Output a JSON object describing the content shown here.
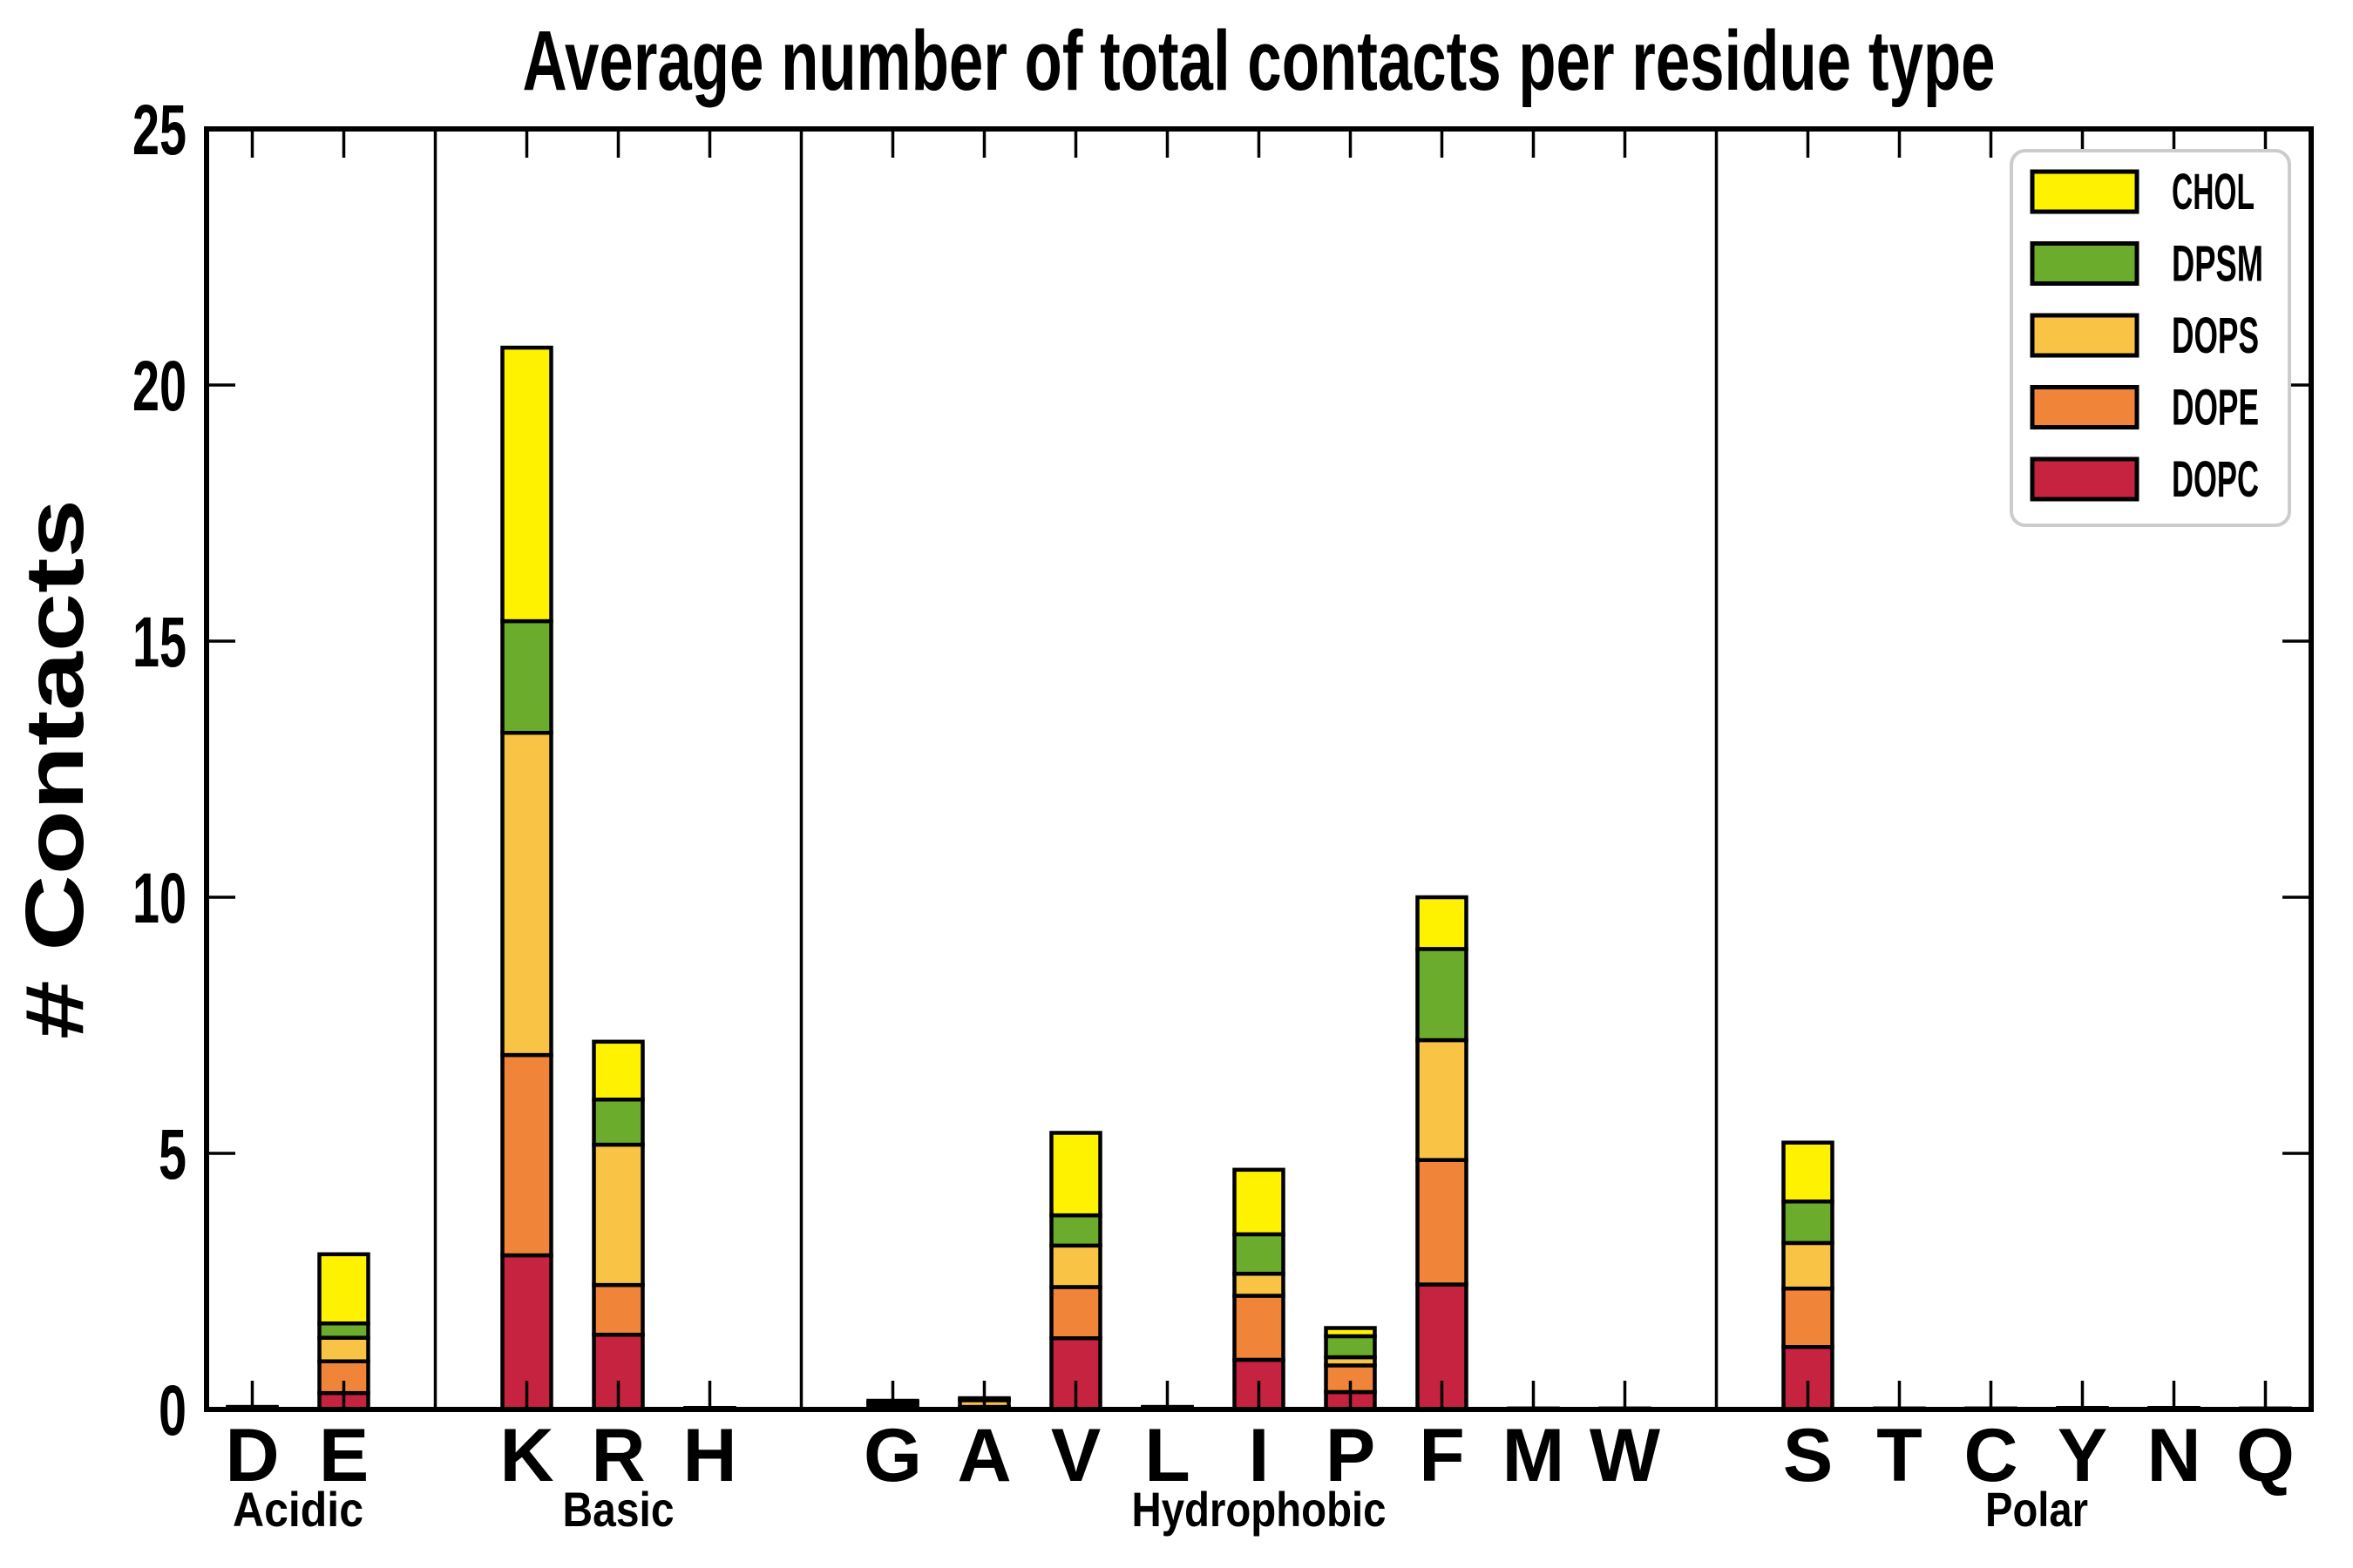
{
  "chart_data": {
    "type": "bar",
    "stacked": true,
    "title": "Average number of total contacts per residue type",
    "ylabel": "# Contacts",
    "xlabel": "",
    "ylim": [
      0,
      25
    ],
    "yticks": [
      "0",
      "5",
      "10",
      "15",
      "20",
      "25"
    ],
    "grid": false,
    "legend_position": "upper right",
    "series_bottom_to_top": [
      "DOPC",
      "DOPE",
      "DOPS",
      "DPSM",
      "CHOL"
    ],
    "colors": {
      "CHOL": "#FFF200",
      "DPSM": "#6CAC2C",
      "DOPS": "#F9C345",
      "DOPE": "#F08539",
      "DOPC": "#C62340",
      "bar_edge": "#000000",
      "legend_border": "#cccccc"
    },
    "legend": [
      {
        "label": "CHOL",
        "color": "#FFF200"
      },
      {
        "label": "DPSM",
        "color": "#6CAC2C"
      },
      {
        "label": "DOPS",
        "color": "#F9C345"
      },
      {
        "label": "DOPE",
        "color": "#F08539"
      },
      {
        "label": "DOPC",
        "color": "#C62340"
      }
    ],
    "groups": [
      {
        "label": "Acidic",
        "residues": [
          {
            "label": "D",
            "values": [
              0.01,
              0.01,
              0.01,
              0.01,
              0.01
            ],
            "total": 0.05
          },
          {
            "label": "E",
            "values": [
              0.32,
              0.62,
              0.46,
              0.28,
              1.35
            ],
            "total": 3.03
          }
        ]
      },
      {
        "label": "Basic",
        "residues": [
          {
            "label": "K",
            "values": [
              3.01,
              3.91,
              6.29,
              2.18,
              5.34
            ],
            "total": 20.73
          },
          {
            "label": "R",
            "values": [
              1.46,
              0.97,
              2.74,
              0.88,
              1.13
            ],
            "total": 7.18
          },
          {
            "label": "H",
            "values": [
              0.01,
              0.01,
              0.01,
              0,
              0
            ],
            "total": 0.03
          }
        ]
      },
      {
        "label": "Hydrophobic",
        "residues": [
          {
            "label": "G",
            "values": [
              0.03,
              0.05,
              0.05,
              0.02,
              0.02
            ],
            "total": 0.17
          },
          {
            "label": "A",
            "values": [
              0.02,
              0.03,
              0.13,
              0.02,
              0.02
            ],
            "total": 0.22
          },
          {
            "label": "V",
            "values": [
              1.39,
              1.0,
              0.81,
              0.59,
              1.61
            ],
            "total": 5.4
          },
          {
            "label": "L",
            "values": [
              0.01,
              0.01,
              0.01,
              0.01,
              0.01
            ],
            "total": 0.05
          },
          {
            "label": "I",
            "values": [
              0.97,
              1.25,
              0.43,
              0.77,
              1.26
            ],
            "total": 4.68
          },
          {
            "label": "P",
            "values": [
              0.34,
              0.52,
              0.16,
              0.41,
              0.16
            ],
            "total": 1.59
          },
          {
            "label": "F",
            "values": [
              2.44,
              2.43,
              2.34,
              1.78,
              1.01
            ],
            "total": 10.0
          },
          {
            "label": "M",
            "values": [
              0.01,
              0.005,
              0.005,
              0,
              0
            ],
            "total": 0.02
          },
          {
            "label": "W",
            "values": [
              0.01,
              0.005,
              0.005,
              0,
              0
            ],
            "total": 0.02
          }
        ]
      },
      {
        "label": "Polar",
        "residues": [
          {
            "label": "S",
            "values": [
              1.22,
              1.14,
              0.89,
              0.81,
              1.15
            ],
            "total": 5.21
          },
          {
            "label": "T",
            "values": [
              0.01,
              0.005,
              0.005,
              0,
              0
            ],
            "total": 0.02
          },
          {
            "label": "C",
            "values": [
              0.01,
              0.005,
              0.005,
              0,
              0
            ],
            "total": 0.02
          },
          {
            "label": "Y",
            "values": [
              0.01,
              0.01,
              0.01,
              0,
              0
            ],
            "total": 0.03
          },
          {
            "label": "N",
            "values": [
              0.01,
              0.01,
              0.01,
              0,
              0
            ],
            "total": 0.03
          },
          {
            "label": "Q",
            "values": [
              0.01,
              0.005,
              0.005,
              0,
              0
            ],
            "total": 0.02
          }
        ]
      }
    ]
  }
}
